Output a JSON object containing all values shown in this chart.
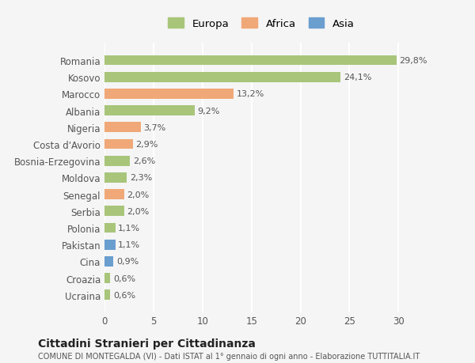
{
  "countries": [
    "Ucraina",
    "Croazia",
    "Cina",
    "Pakistan",
    "Polonia",
    "Serbia",
    "Senegal",
    "Moldova",
    "Bosnia-Erzegovina",
    "Costa d'Avorio",
    "Nigeria",
    "Albania",
    "Marocco",
    "Kosovo",
    "Romania"
  ],
  "values": [
    0.6,
    0.6,
    0.9,
    1.1,
    1.1,
    2.0,
    2.0,
    2.3,
    2.6,
    2.9,
    3.7,
    9.2,
    13.2,
    24.1,
    29.8
  ],
  "labels": [
    "0,6%",
    "0,6%",
    "0,9%",
    "1,1%",
    "1,1%",
    "2,0%",
    "2,0%",
    "2,3%",
    "2,6%",
    "2,9%",
    "3,7%",
    "9,2%",
    "13,2%",
    "24,1%",
    "29,8%"
  ],
  "continents": [
    "Europa",
    "Europa",
    "Asia",
    "Asia",
    "Europa",
    "Europa",
    "Africa",
    "Europa",
    "Europa",
    "Africa",
    "Africa",
    "Europa",
    "Africa",
    "Europa",
    "Europa"
  ],
  "colors": {
    "Europa": "#a8c57a",
    "Africa": "#f0a878",
    "Asia": "#6a9ecf"
  },
  "legend_order": [
    "Europa",
    "Africa",
    "Asia"
  ],
  "xlim": [
    0,
    32
  ],
  "xticks": [
    0,
    5,
    10,
    15,
    20,
    25,
    30
  ],
  "title": "Cittadini Stranieri per Cittadinanza",
  "subtitle": "COMUNE DI MONTEGALDA (VI) - Dati ISTAT al 1° gennaio di ogni anno - Elaborazione TUTTITALIA.IT",
  "bg_color": "#f5f5f5",
  "grid_color": "#ffffff",
  "bar_height": 0.6
}
